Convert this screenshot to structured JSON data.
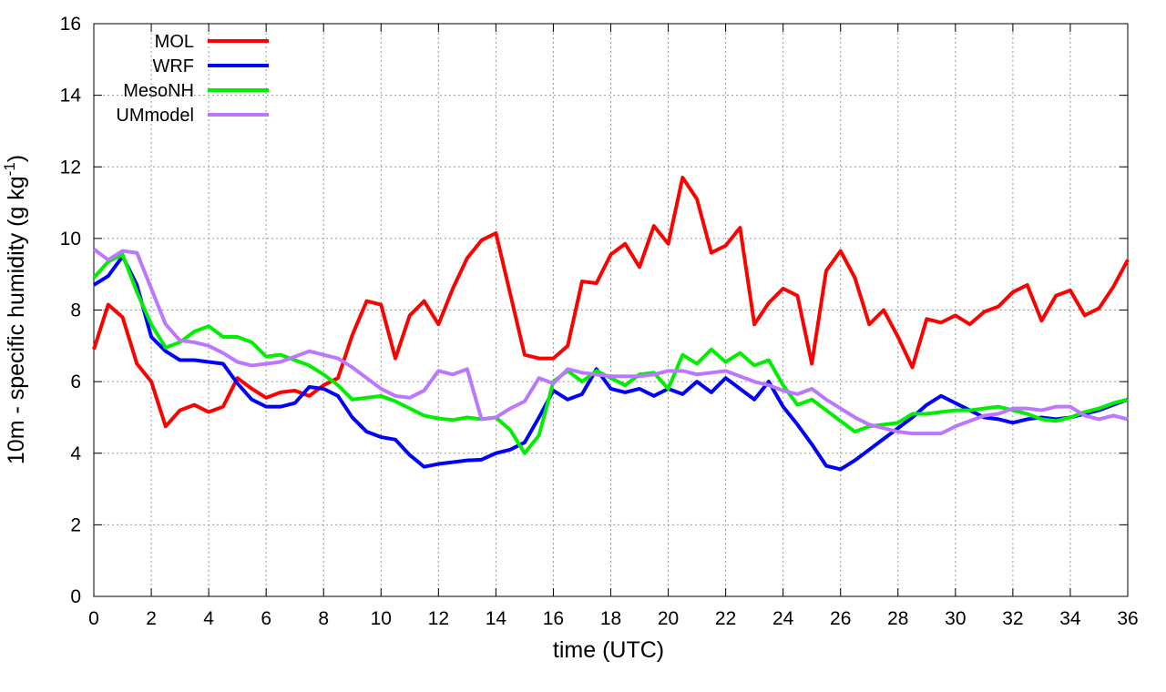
{
  "chart_data": {
    "type": "line",
    "xlabel": "time (UTC)",
    "ylabel": "10m - specific humidity (g kg",
    "ylabel_superscript": "-1",
    "ylabel_end": ")",
    "x": [
      0,
      0.5,
      1,
      1.5,
      2,
      2.5,
      3,
      3.5,
      4,
      4.5,
      5,
      5.5,
      6,
      6.5,
      7,
      7.5,
      8,
      8.5,
      9,
      9.5,
      10,
      10.5,
      11,
      11.5,
      12,
      12.5,
      13,
      13.5,
      14,
      14.5,
      15,
      15.5,
      16,
      16.5,
      17,
      17.5,
      18,
      18.5,
      19,
      19.5,
      20,
      20.5,
      21,
      21.5,
      22,
      22.5,
      23,
      23.5,
      24,
      24.5,
      25,
      25.5,
      26,
      26.5,
      27,
      27.5,
      28,
      28.5,
      29,
      29.5,
      30,
      30.5,
      31,
      31.5,
      32,
      32.5,
      33,
      33.5,
      34,
      34.5,
      35,
      35.5,
      36
    ],
    "series": [
      {
        "name": "MOL",
        "color": "#ff0000",
        "values": [
          6.9,
          8.15,
          7.8,
          6.5,
          6.0,
          4.75,
          5.2,
          5.35,
          5.15,
          5.3,
          6.1,
          5.8,
          5.55,
          5.7,
          5.75,
          5.6,
          5.9,
          6.1,
          7.3,
          8.25,
          8.15,
          6.65,
          7.85,
          8.25,
          7.6,
          8.6,
          9.45,
          9.95,
          10.15,
          8.45,
          6.75,
          6.65,
          6.65,
          7.0,
          8.8,
          8.75,
          9.55,
          9.85,
          9.2,
          10.35,
          9.85,
          11.7,
          11.1,
          9.6,
          9.8,
          10.3,
          7.6,
          8.2,
          8.6,
          8.4,
          6.5,
          9.1,
          9.65,
          8.9,
          7.6,
          8.0,
          7.25,
          6.4,
          7.75,
          7.65,
          7.85,
          7.6,
          7.95,
          8.1,
          8.5,
          8.7,
          7.7,
          8.4,
          8.55,
          7.85,
          8.05,
          8.65,
          9.4
        ]
      },
      {
        "name": "WRF",
        "color": "#0000ff",
        "values": [
          8.7,
          8.95,
          9.5,
          8.7,
          7.25,
          6.85,
          6.6,
          6.6,
          6.55,
          6.5,
          5.95,
          5.5,
          5.3,
          5.3,
          5.4,
          5.85,
          5.8,
          5.6,
          5.0,
          4.6,
          4.45,
          4.38,
          3.95,
          3.62,
          3.7,
          3.75,
          3.8,
          3.82,
          4.0,
          4.1,
          4.3,
          5.0,
          5.75,
          5.5,
          5.65,
          6.35,
          5.8,
          5.7,
          5.8,
          5.6,
          5.8,
          5.65,
          6.0,
          5.7,
          6.1,
          5.8,
          5.5,
          6.0,
          5.3,
          4.8,
          4.25,
          3.65,
          3.55,
          3.8,
          4.1,
          4.4,
          4.7,
          5.0,
          5.35,
          5.6,
          5.4,
          5.2,
          5.0,
          4.95,
          4.85,
          4.95,
          5.0,
          4.95,
          5.0,
          5.1,
          5.2,
          5.35,
          5.5
        ]
      },
      {
        "name": "MesoNH",
        "color": "#00ee00",
        "values": [
          8.9,
          9.35,
          9.55,
          8.5,
          7.6,
          6.95,
          7.1,
          7.4,
          7.55,
          7.25,
          7.25,
          7.1,
          6.7,
          6.75,
          6.6,
          6.45,
          6.2,
          5.9,
          5.5,
          5.55,
          5.6,
          5.45,
          5.25,
          5.05,
          4.97,
          4.93,
          5.0,
          4.95,
          5.0,
          4.65,
          4.0,
          4.5,
          6.0,
          6.3,
          6.0,
          6.3,
          6.1,
          5.9,
          6.2,
          6.25,
          5.8,
          6.75,
          6.5,
          6.9,
          6.55,
          6.8,
          6.45,
          6.6,
          5.9,
          5.35,
          5.5,
          5.2,
          4.9,
          4.6,
          4.75,
          4.8,
          4.85,
          5.1,
          5.1,
          5.15,
          5.2,
          5.2,
          5.25,
          5.3,
          5.2,
          5.1,
          4.95,
          4.9,
          5.0,
          5.15,
          5.25,
          5.4,
          5.5
        ]
      },
      {
        "name": "UMmodel",
        "color": "#bb77ff",
        "values": [
          9.7,
          9.4,
          9.65,
          9.6,
          8.6,
          7.6,
          7.15,
          7.1,
          7.0,
          6.8,
          6.55,
          6.45,
          6.5,
          6.55,
          6.7,
          6.85,
          6.75,
          6.65,
          6.4,
          6.1,
          5.8,
          5.6,
          5.55,
          5.75,
          6.3,
          6.2,
          6.35,
          4.95,
          5.0,
          5.25,
          5.45,
          6.1,
          5.95,
          6.35,
          6.25,
          6.2,
          6.15,
          6.15,
          6.15,
          6.2,
          6.3,
          6.3,
          6.2,
          6.25,
          6.3,
          6.15,
          6.0,
          5.9,
          5.75,
          5.65,
          5.8,
          5.5,
          5.25,
          5.0,
          4.8,
          4.7,
          4.6,
          4.55,
          4.55,
          4.55,
          4.75,
          4.9,
          5.05,
          5.1,
          5.25,
          5.25,
          5.2,
          5.3,
          5.3,
          5.05,
          4.95,
          5.05,
          4.95
        ]
      }
    ],
    "xlim": [
      0,
      36
    ],
    "xticks": [
      0,
      2,
      4,
      6,
      8,
      10,
      12,
      14,
      16,
      18,
      20,
      22,
      24,
      26,
      28,
      30,
      32,
      34,
      36
    ],
    "ylim": [
      0,
      16
    ],
    "yticks": [
      0,
      2,
      4,
      6,
      8,
      10,
      12,
      14,
      16
    ],
    "grid": true,
    "legend": "top-left"
  }
}
